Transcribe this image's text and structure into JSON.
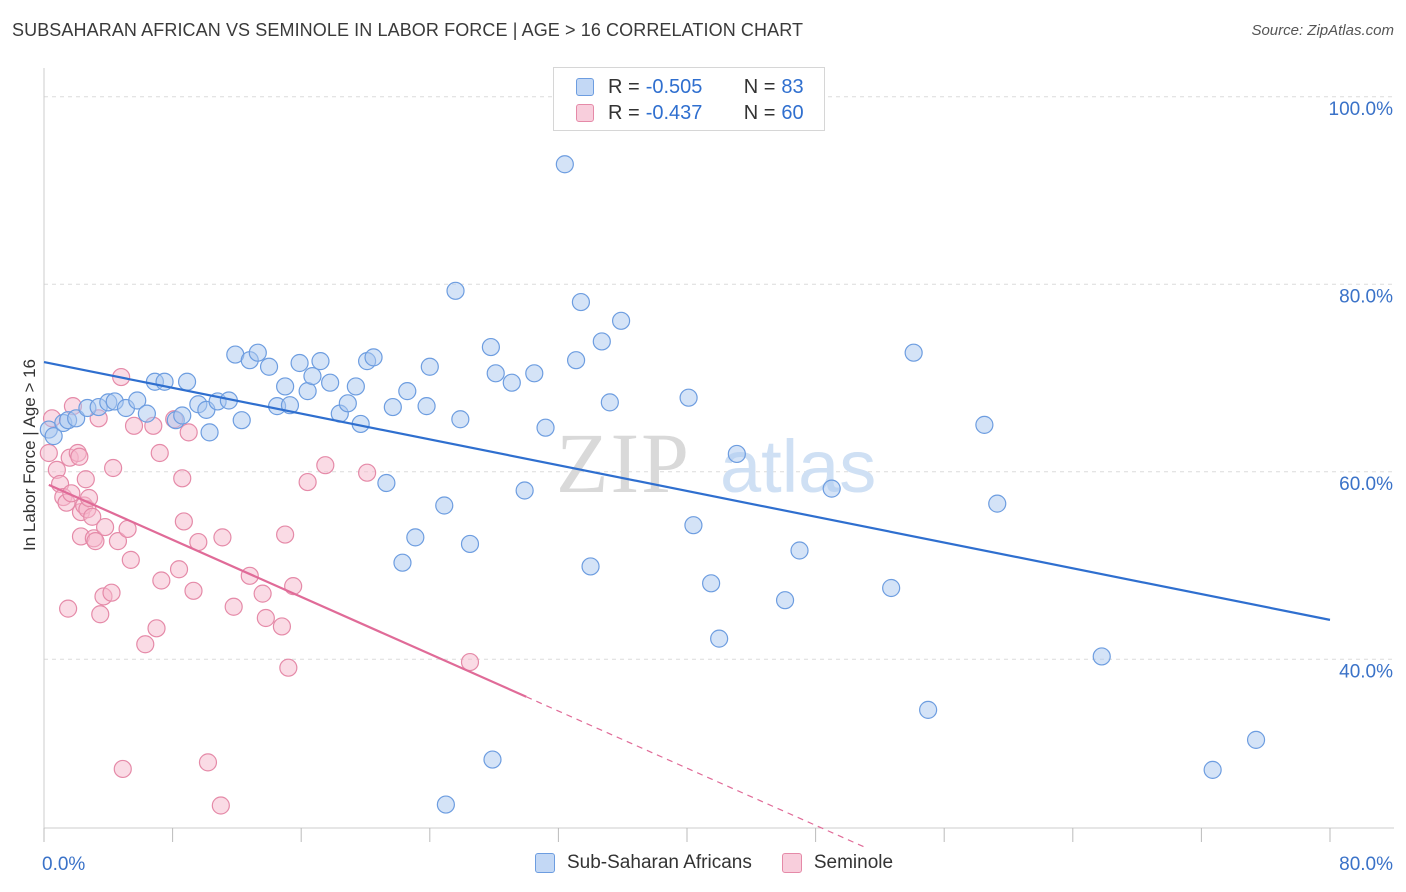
{
  "title": "SUBSAHARAN AFRICAN VS SEMINOLE IN LABOR FORCE | AGE > 16 CORRELATION CHART",
  "source": "Source: ZipAtlas.com",
  "watermark": {
    "zip": "ZIP",
    "atlas": "atlas"
  },
  "colors": {
    "blue_fill": "#a9c8f0",
    "blue_stroke": "#6d9de0",
    "blue_line": "#2f6fcf",
    "pink_fill": "#f5b8cc",
    "pink_stroke": "#e58aa8",
    "pink_line": "#e06b98",
    "axis_label": "#3a72c8",
    "grid": "#dcdcdc"
  },
  "legend_top": {
    "blue": {
      "r_label": "R = ",
      "r_value": "-0.505",
      "n_label": "N = ",
      "n_value": "83"
    },
    "pink": {
      "r_label": "R = ",
      "r_value": "-0.437",
      "n_label": "N = ",
      "n_value": "60"
    }
  },
  "chart_data": {
    "type": "scatter",
    "title": "SUBSAHARAN AFRICAN VS SEMINOLE IN LABOR FORCE | AGE > 16 CORRELATION CHART",
    "xlabel": "",
    "ylabel": "In Labor Force | Age > 16",
    "xlim": [
      0,
      80
    ],
    "ylim": [
      22,
      102
    ],
    "x_tick_labels": [
      {
        "value": 0,
        "label": "0.0%"
      },
      {
        "value": 80,
        "label": "80.0%"
      }
    ],
    "y_tick_labels": [
      {
        "value": 100,
        "label": "100.0%"
      },
      {
        "value": 80,
        "label": "80.0%"
      },
      {
        "value": 60,
        "label": "60.0%"
      },
      {
        "value": 40,
        "label": "40.0%"
      }
    ],
    "legend_placement": "bottom-center",
    "series": [
      {
        "name": "Sub-Saharan Africans",
        "color": "#a9c8f0",
        "trend": {
          "x": [
            0,
            80
          ],
          "y": [
            71.7,
            44.2
          ]
        },
        "points": [
          [
            0.3,
            64.5
          ],
          [
            0.6,
            63.8
          ],
          [
            1.2,
            65.2
          ],
          [
            1.5,
            65.5
          ],
          [
            2.0,
            65.7
          ],
          [
            2.7,
            66.8
          ],
          [
            3.4,
            66.9
          ],
          [
            4.0,
            67.4
          ],
          [
            4.4,
            67.5
          ],
          [
            5.1,
            66.8
          ],
          [
            5.8,
            67.6
          ],
          [
            6.4,
            66.2
          ],
          [
            6.9,
            69.6
          ],
          [
            7.5,
            69.6
          ],
          [
            8.2,
            65.5
          ],
          [
            8.6,
            66.0
          ],
          [
            8.9,
            69.6
          ],
          [
            9.6,
            67.2
          ],
          [
            10.1,
            66.6
          ],
          [
            10.3,
            64.2
          ],
          [
            10.8,
            67.5
          ],
          [
            11.5,
            67.6
          ],
          [
            11.9,
            72.5
          ],
          [
            12.3,
            65.5
          ],
          [
            12.8,
            71.9
          ],
          [
            13.3,
            72.7
          ],
          [
            14.0,
            71.2
          ],
          [
            14.5,
            67.0
          ],
          [
            15.0,
            69.1
          ],
          [
            15.3,
            67.1
          ],
          [
            15.9,
            71.6
          ],
          [
            16.4,
            68.6
          ],
          [
            16.7,
            70.2
          ],
          [
            17.2,
            71.8
          ],
          [
            17.8,
            69.5
          ],
          [
            18.4,
            66.2
          ],
          [
            18.9,
            67.3
          ],
          [
            19.4,
            69.1
          ],
          [
            19.7,
            65.1
          ],
          [
            20.1,
            71.8
          ],
          [
            20.5,
            72.2
          ],
          [
            21.3,
            58.8
          ],
          [
            21.7,
            66.9
          ],
          [
            22.3,
            50.3
          ],
          [
            22.6,
            68.6
          ],
          [
            23.1,
            53.0
          ],
          [
            24.0,
            71.2
          ],
          [
            24.9,
            56.4
          ],
          [
            25.6,
            79.3
          ],
          [
            25.9,
            65.6
          ],
          [
            26.5,
            52.3
          ],
          [
            27.8,
            73.3
          ],
          [
            28.1,
            70.5
          ],
          [
            29.1,
            69.5
          ],
          [
            29.9,
            58.0
          ],
          [
            30.5,
            70.5
          ],
          [
            31.2,
            64.7
          ],
          [
            32.4,
            92.8
          ],
          [
            33.1,
            71.9
          ],
          [
            33.4,
            78.1
          ],
          [
            34.0,
            49.9
          ],
          [
            34.7,
            73.9
          ],
          [
            35.2,
            67.4
          ],
          [
            35.9,
            76.1
          ],
          [
            40.1,
            67.9
          ],
          [
            40.4,
            54.3
          ],
          [
            41.5,
            48.1
          ],
          [
            42.0,
            42.2
          ],
          [
            43.1,
            61.9
          ],
          [
            46.1,
            46.3
          ],
          [
            47.0,
            51.6
          ],
          [
            49.0,
            58.2
          ],
          [
            52.7,
            47.6
          ],
          [
            54.1,
            72.7
          ],
          [
            55.0,
            34.6
          ],
          [
            58.5,
            65.0
          ],
          [
            59.3,
            56.6
          ],
          [
            65.8,
            40.3
          ],
          [
            72.7,
            28.2
          ],
          [
            75.4,
            31.4
          ],
          [
            27.9,
            29.3
          ],
          [
            25.0,
            24.5
          ],
          [
            23.8,
            67.0
          ]
        ]
      },
      {
        "name": "Seminole",
        "color": "#f5b8cc",
        "trend": {
          "x": [
            0.3,
            30.0
          ],
          "y": [
            58.6,
            36.0
          ]
        },
        "trend_dashed": {
          "x": [
            30.0,
            51.0
          ],
          "y": [
            36.0,
            20.0
          ]
        },
        "points": [
          [
            0.3,
            62.0
          ],
          [
            0.5,
            65.7
          ],
          [
            0.8,
            60.2
          ],
          [
            1.0,
            58.7
          ],
          [
            1.2,
            57.3
          ],
          [
            1.4,
            56.7
          ],
          [
            1.6,
            61.5
          ],
          [
            1.7,
            57.7
          ],
          [
            1.8,
            67.0
          ],
          [
            2.1,
            62.0
          ],
          [
            2.2,
            61.6
          ],
          [
            2.3,
            55.7
          ],
          [
            2.3,
            53.1
          ],
          [
            2.5,
            56.4
          ],
          [
            2.6,
            59.2
          ],
          [
            2.7,
            56.0
          ],
          [
            2.8,
            57.2
          ],
          [
            3.0,
            55.2
          ],
          [
            3.1,
            52.9
          ],
          [
            3.2,
            52.6
          ],
          [
            3.4,
            65.7
          ],
          [
            3.5,
            44.8
          ],
          [
            3.7,
            46.7
          ],
          [
            3.8,
            54.1
          ],
          [
            4.2,
            47.1
          ],
          [
            4.3,
            60.4
          ],
          [
            4.6,
            52.6
          ],
          [
            4.8,
            70.1
          ],
          [
            4.9,
            28.3
          ],
          [
            5.2,
            53.9
          ],
          [
            5.4,
            50.6
          ],
          [
            5.6,
            64.9
          ],
          [
            6.3,
            41.6
          ],
          [
            6.8,
            64.9
          ],
          [
            7.0,
            43.3
          ],
          [
            7.2,
            62.0
          ],
          [
            7.3,
            48.4
          ],
          [
            8.1,
            65.6
          ],
          [
            8.4,
            49.6
          ],
          [
            8.6,
            59.3
          ],
          [
            8.7,
            54.7
          ],
          [
            9.0,
            64.2
          ],
          [
            9.3,
            47.3
          ],
          [
            10.2,
            29.0
          ],
          [
            11.0,
            24.4
          ],
          [
            11.1,
            53.0
          ],
          [
            11.8,
            45.6
          ],
          [
            12.8,
            48.9
          ],
          [
            13.6,
            47.0
          ],
          [
            13.8,
            44.4
          ],
          [
            14.8,
            43.5
          ],
          [
            15.0,
            53.3
          ],
          [
            15.2,
            39.1
          ],
          [
            15.5,
            47.8
          ],
          [
            16.4,
            58.9
          ],
          [
            17.5,
            60.7
          ],
          [
            20.1,
            59.9
          ],
          [
            26.5,
            39.7
          ],
          [
            1.5,
            45.4
          ],
          [
            9.6,
            52.5
          ]
        ]
      }
    ]
  },
  "bottom_legend": {
    "blue_label": "Sub-Saharan Africans",
    "pink_label": "Seminole"
  }
}
